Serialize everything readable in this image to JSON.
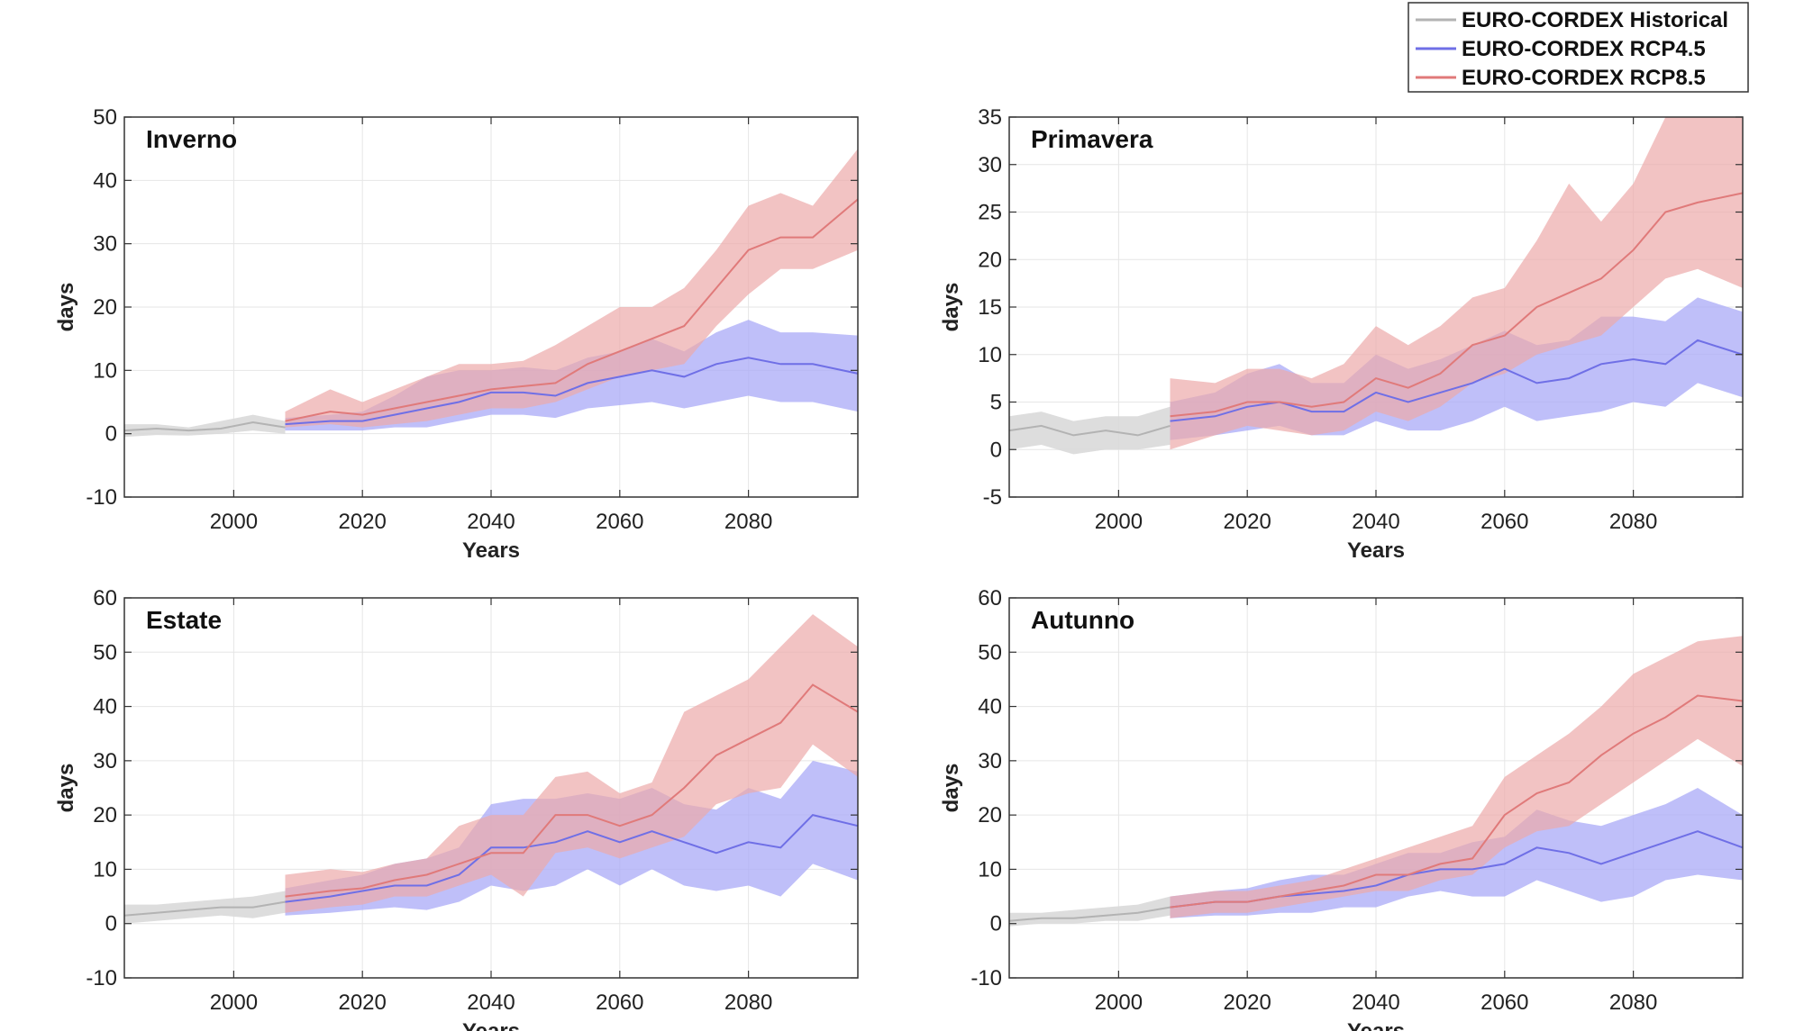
{
  "legend": {
    "entries": [
      {
        "label": "EURO-CORDEX Historical",
        "color": "#b3b3b3"
      },
      {
        "label": "EURO-CORDEX RCP4.5",
        "color": "#6f6fe6"
      },
      {
        "label": "EURO-CORDEX RCP8.5",
        "color": "#e07a7a"
      }
    ],
    "placement": "top-right"
  },
  "colors": {
    "historical_line": "#b3b3b3",
    "historical_band": "#d9d9d9",
    "rcp45_line": "#6f6fe6",
    "rcp45_band": "#a9a9f7",
    "rcp85_line": "#e07a7a",
    "rcp85_band": "#edaaaa"
  },
  "chart_data": [
    {
      "type": "area",
      "title": "Inverno",
      "xlabel": "Years",
      "ylabel": "days",
      "xlim": [
        1983,
        2097
      ],
      "ylim": [
        -10,
        50
      ],
      "xticks": [
        2000,
        2020,
        2040,
        2060,
        2080
      ],
      "yticks": [
        -10,
        0,
        10,
        20,
        30,
        40,
        50
      ],
      "grid": true,
      "series": [
        {
          "key": "historical",
          "x": [
            1983,
            1988,
            1993,
            1998,
            2003,
            2008
          ],
          "mean": [
            0.5,
            0.8,
            0.5,
            0.8,
            1.8,
            1.0
          ],
          "lower": [
            -0.5,
            -0.2,
            -0.3,
            0.0,
            0.5,
            0.0
          ],
          "upper": [
            1.5,
            1.5,
            1.0,
            2.0,
            3.0,
            2.0
          ]
        },
        {
          "key": "rcp45",
          "x": [
            2008,
            2015,
            2020,
            2025,
            2030,
            2035,
            2040,
            2045,
            2050,
            2055,
            2060,
            2065,
            2070,
            2075,
            2080,
            2085,
            2090,
            2097
          ],
          "mean": [
            1.5,
            2.0,
            2.0,
            3.0,
            4.0,
            5.0,
            6.5,
            6.5,
            6.0,
            8.0,
            9.0,
            10.0,
            9.0,
            11.0,
            12.0,
            11.0,
            11.0,
            9.5
          ],
          "lower": [
            0.5,
            0.5,
            0.5,
            1.0,
            1.0,
            2.0,
            3.0,
            3.0,
            2.5,
            4.0,
            4.5,
            5.0,
            4.0,
            5.0,
            6.0,
            5.0,
            5.0,
            3.5
          ],
          "upper": [
            2.5,
            3.0,
            3.5,
            6.0,
            9.0,
            10.0,
            10.0,
            10.5,
            10.0,
            12.0,
            13.0,
            15.0,
            13.0,
            16.0,
            18.0,
            16.0,
            16.0,
            15.5
          ]
        },
        {
          "key": "rcp85",
          "x": [
            2008,
            2015,
            2020,
            2025,
            2030,
            2035,
            2040,
            2045,
            2050,
            2055,
            2060,
            2065,
            2070,
            2075,
            2080,
            2085,
            2090,
            2097
          ],
          "mean": [
            2.0,
            3.5,
            3.0,
            4.0,
            5.0,
            6.0,
            7.0,
            7.5,
            8.0,
            11.0,
            13.0,
            15.0,
            17.0,
            23.0,
            29.0,
            31.0,
            31.0,
            37.0
          ],
          "lower": [
            1.0,
            1.5,
            1.0,
            1.5,
            2.0,
            3.0,
            4.0,
            4.0,
            5.0,
            7.0,
            9.0,
            10.0,
            11.0,
            17.0,
            22.0,
            26.0,
            26.0,
            29.0
          ],
          "upper": [
            3.5,
            7.0,
            5.0,
            7.0,
            9.0,
            11.0,
            11.0,
            11.5,
            14.0,
            17.0,
            20.0,
            20.0,
            23.0,
            29.0,
            36.0,
            38.0,
            36.0,
            45.0
          ]
        }
      ]
    },
    {
      "type": "area",
      "title": "Primavera",
      "xlabel": "Years",
      "ylabel": "days",
      "xlim": [
        1983,
        2097
      ],
      "ylim": [
        -5,
        35
      ],
      "xticks": [
        2000,
        2020,
        2040,
        2060,
        2080
      ],
      "yticks": [
        -5,
        0,
        5,
        10,
        15,
        20,
        25,
        30,
        35
      ],
      "grid": true,
      "series": [
        {
          "key": "historical",
          "x": [
            1983,
            1988,
            1993,
            1998,
            2003,
            2008
          ],
          "mean": [
            2.0,
            2.5,
            1.5,
            2.0,
            1.5,
            2.5
          ],
          "lower": [
            0.0,
            0.5,
            -0.5,
            0.0,
            0.0,
            0.5
          ],
          "upper": [
            3.5,
            4.0,
            3.0,
            3.5,
            3.5,
            4.5
          ]
        },
        {
          "key": "rcp45",
          "x": [
            2008,
            2015,
            2020,
            2025,
            2030,
            2035,
            2040,
            2045,
            2050,
            2055,
            2060,
            2065,
            2070,
            2075,
            2080,
            2085,
            2090,
            2097
          ],
          "mean": [
            3.0,
            3.5,
            4.5,
            5.0,
            4.0,
            4.0,
            6.0,
            5.0,
            6.0,
            7.0,
            8.5,
            7.0,
            7.5,
            9.0,
            9.5,
            9.0,
            11.5,
            10.0
          ],
          "lower": [
            1.0,
            1.5,
            2.0,
            2.5,
            1.5,
            1.5,
            3.0,
            2.0,
            2.0,
            3.0,
            4.5,
            3.0,
            3.5,
            4.0,
            5.0,
            4.5,
            7.0,
            5.5
          ],
          "upper": [
            5.0,
            6.0,
            8.0,
            9.0,
            7.0,
            7.0,
            10.0,
            8.5,
            9.5,
            11.0,
            12.5,
            11.0,
            11.5,
            14.0,
            14.0,
            13.5,
            16.0,
            14.5
          ]
        },
        {
          "key": "rcp85",
          "x": [
            2008,
            2015,
            2020,
            2025,
            2030,
            2035,
            2040,
            2045,
            2050,
            2055,
            2060,
            2065,
            2070,
            2075,
            2080,
            2085,
            2090,
            2097
          ],
          "mean": [
            3.5,
            4.0,
            5.0,
            5.0,
            4.5,
            5.0,
            7.5,
            6.5,
            8.0,
            11.0,
            12.0,
            15.0,
            16.5,
            18.0,
            21.0,
            25.0,
            26.0,
            27.0
          ],
          "lower": [
            0.0,
            1.5,
            2.5,
            2.0,
            1.5,
            2.0,
            4.0,
            3.0,
            4.5,
            7.0,
            8.0,
            10.0,
            11.0,
            12.0,
            15.0,
            18.0,
            19.0,
            17.0
          ],
          "upper": [
            7.5,
            7.0,
            8.5,
            8.5,
            7.5,
            9.0,
            13.0,
            11.0,
            13.0,
            16.0,
            17.0,
            22.0,
            28.0,
            24.0,
            28.0,
            35.0,
            35.0,
            35.0
          ]
        }
      ]
    },
    {
      "type": "area",
      "title": "Estate",
      "xlabel": "Years",
      "ylabel": "days",
      "xlim": [
        1983,
        2097
      ],
      "ylim": [
        -10,
        60
      ],
      "xticks": [
        2000,
        2020,
        2040,
        2060,
        2080
      ],
      "yticks": [
        -10,
        0,
        10,
        20,
        30,
        40,
        50,
        60
      ],
      "grid": true,
      "series": [
        {
          "key": "historical",
          "x": [
            1983,
            1988,
            1993,
            1998,
            2003,
            2008
          ],
          "mean": [
            1.5,
            2.0,
            2.5,
            3.0,
            3.0,
            4.0
          ],
          "lower": [
            0.0,
            0.5,
            1.0,
            1.5,
            1.0,
            2.0
          ],
          "upper": [
            3.5,
            3.5,
            4.0,
            4.5,
            5.0,
            6.0
          ]
        },
        {
          "key": "rcp45",
          "x": [
            2008,
            2015,
            2020,
            2025,
            2030,
            2035,
            2040,
            2045,
            2050,
            2055,
            2060,
            2065,
            2070,
            2075,
            2080,
            2085,
            2090,
            2097
          ],
          "mean": [
            4.0,
            5.0,
            6.0,
            7.0,
            7.0,
            9.0,
            14.0,
            14.0,
            15.0,
            17.0,
            15.0,
            17.0,
            15.0,
            13.0,
            15.0,
            14.0,
            20.0,
            18.0
          ],
          "lower": [
            1.5,
            2.0,
            2.5,
            3.0,
            2.5,
            4.0,
            7.0,
            6.0,
            7.0,
            10.0,
            7.0,
            10.0,
            7.0,
            6.0,
            7.0,
            5.0,
            11.0,
            8.0
          ],
          "upper": [
            6.5,
            8.0,
            9.0,
            11.0,
            12.0,
            14.0,
            22.0,
            23.0,
            23.0,
            24.0,
            23.0,
            25.0,
            22.0,
            21.0,
            25.0,
            23.0,
            30.0,
            28.0
          ]
        },
        {
          "key": "rcp85",
          "x": [
            2008,
            2015,
            2020,
            2025,
            2030,
            2035,
            2040,
            2045,
            2050,
            2055,
            2060,
            2065,
            2070,
            2075,
            2080,
            2085,
            2090,
            2097
          ],
          "mean": [
            5.0,
            6.0,
            6.5,
            8.0,
            9.0,
            11.0,
            13.0,
            13.0,
            20.0,
            20.0,
            18.0,
            20.0,
            25.0,
            31.0,
            34.0,
            37.0,
            44.0,
            39.0
          ],
          "lower": [
            2.0,
            3.0,
            3.5,
            5.0,
            5.0,
            7.0,
            9.0,
            5.0,
            13.0,
            14.0,
            12.0,
            14.0,
            16.0,
            22.0,
            24.0,
            25.0,
            33.0,
            27.0
          ],
          "upper": [
            9.0,
            10.0,
            9.5,
            11.0,
            12.0,
            18.0,
            20.0,
            20.0,
            27.0,
            28.0,
            24.0,
            26.0,
            39.0,
            42.0,
            45.0,
            51.0,
            57.0,
            51.0
          ]
        }
      ]
    },
    {
      "type": "area",
      "title": "Autunno",
      "xlabel": "Years",
      "ylabel": "days",
      "xlim": [
        1983,
        2097
      ],
      "ylim": [
        -10,
        60
      ],
      "xticks": [
        2000,
        2020,
        2040,
        2060,
        2080
      ],
      "yticks": [
        -10,
        0,
        10,
        20,
        30,
        40,
        50,
        60
      ],
      "grid": true,
      "series": [
        {
          "key": "historical",
          "x": [
            1983,
            1988,
            1993,
            1998,
            2003,
            2008
          ],
          "mean": [
            0.5,
            1.0,
            1.0,
            1.5,
            2.0,
            3.0
          ],
          "lower": [
            -0.5,
            0.0,
            0.0,
            0.5,
            0.5,
            1.5
          ],
          "upper": [
            2.0,
            2.0,
            2.5,
            3.0,
            3.5,
            5.0
          ]
        },
        {
          "key": "rcp45",
          "x": [
            2008,
            2015,
            2020,
            2025,
            2030,
            2035,
            2040,
            2045,
            2050,
            2055,
            2060,
            2065,
            2070,
            2075,
            2080,
            2085,
            2090,
            2097
          ],
          "mean": [
            3.0,
            4.0,
            4.0,
            5.0,
            5.5,
            6.0,
            7.0,
            9.0,
            10.0,
            10.0,
            11.0,
            14.0,
            13.0,
            11.0,
            13.0,
            15.0,
            17.0,
            14.0
          ],
          "lower": [
            1.0,
            1.5,
            1.5,
            2.0,
            2.0,
            3.0,
            3.0,
            5.0,
            6.0,
            5.0,
            5.0,
            8.0,
            6.0,
            4.0,
            5.0,
            8.0,
            9.0,
            8.0
          ],
          "upper": [
            5.0,
            6.0,
            6.5,
            8.0,
            9.0,
            9.0,
            11.0,
            13.0,
            13.0,
            15.0,
            16.0,
            21.0,
            19.0,
            18.0,
            20.0,
            22.0,
            25.0,
            20.0
          ]
        },
        {
          "key": "rcp85",
          "x": [
            2008,
            2015,
            2020,
            2025,
            2030,
            2035,
            2040,
            2045,
            2050,
            2055,
            2060,
            2065,
            2070,
            2075,
            2080,
            2085,
            2090,
            2097
          ],
          "mean": [
            3.0,
            4.0,
            4.0,
            5.0,
            6.0,
            7.0,
            9.0,
            9.0,
            11.0,
            12.0,
            20.0,
            24.0,
            26.0,
            31.0,
            35.0,
            38.0,
            42.0,
            41.0
          ],
          "lower": [
            1.0,
            2.0,
            2.0,
            3.0,
            4.0,
            5.0,
            6.0,
            6.0,
            8.0,
            9.0,
            14.0,
            17.0,
            18.0,
            22.0,
            26.0,
            30.0,
            34.0,
            29.0
          ],
          "upper": [
            5.0,
            6.0,
            6.0,
            7.0,
            8.0,
            10.0,
            12.0,
            14.0,
            16.0,
            18.0,
            27.0,
            31.0,
            35.0,
            40.0,
            46.0,
            49.0,
            52.0,
            53.0
          ]
        }
      ]
    }
  ]
}
